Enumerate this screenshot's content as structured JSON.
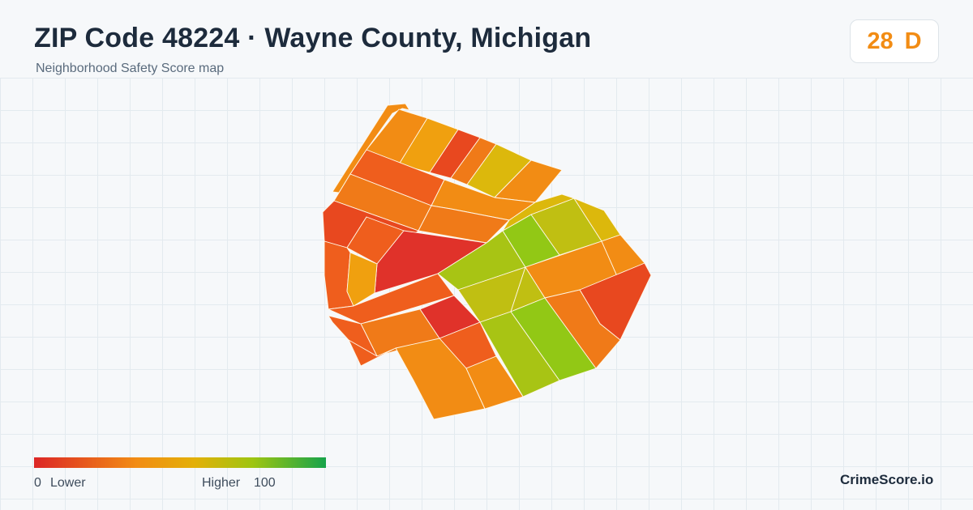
{
  "header": {
    "title": "ZIP Code 48224 · Wayne County, Michigan",
    "subtitle": "Neighborhood Safety Score map"
  },
  "badge": {
    "score": "28",
    "grade": "D",
    "color": "#f28c14"
  },
  "legend": {
    "min_value": "0",
    "min_label": "Lower",
    "max_label": "Higher",
    "max_value": "100",
    "colors": [
      "#dc2626",
      "#f28c14",
      "#e3b008",
      "#9ec511",
      "#16a34a"
    ]
  },
  "brand": "CrimeScore.io",
  "map": {
    "fill_colors": {
      "red": "#e0322a",
      "red_orange": "#e8481f",
      "orange_red": "#ef5e1d",
      "orange": "#f07a18",
      "deep_orange": "#f28c14",
      "amber": "#f0a00f",
      "yellow": "#dcb80c",
      "olive": "#c0bf12",
      "yellow_green": "#a8c414",
      "green": "#92c815"
    }
  }
}
